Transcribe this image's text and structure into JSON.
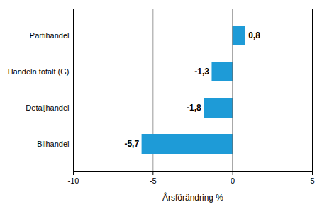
{
  "chart_data": {
    "type": "bar",
    "orientation": "horizontal",
    "categories": [
      "Partihandel",
      "Handeln totalt (G)",
      "Detaljhandel",
      "Bilhandel"
    ],
    "values": [
      0.8,
      -1.3,
      -1.8,
      -5.7
    ],
    "value_labels": [
      "0,8",
      "-1,3",
      "-1,8",
      "-5,7"
    ],
    "data_labels": true,
    "color": "#1e9bd7",
    "xlabel": "Årsförändring %",
    "xlim": [
      -10,
      5
    ],
    "xticks": [
      -10,
      -5,
      0,
      5
    ],
    "grid": true
  }
}
